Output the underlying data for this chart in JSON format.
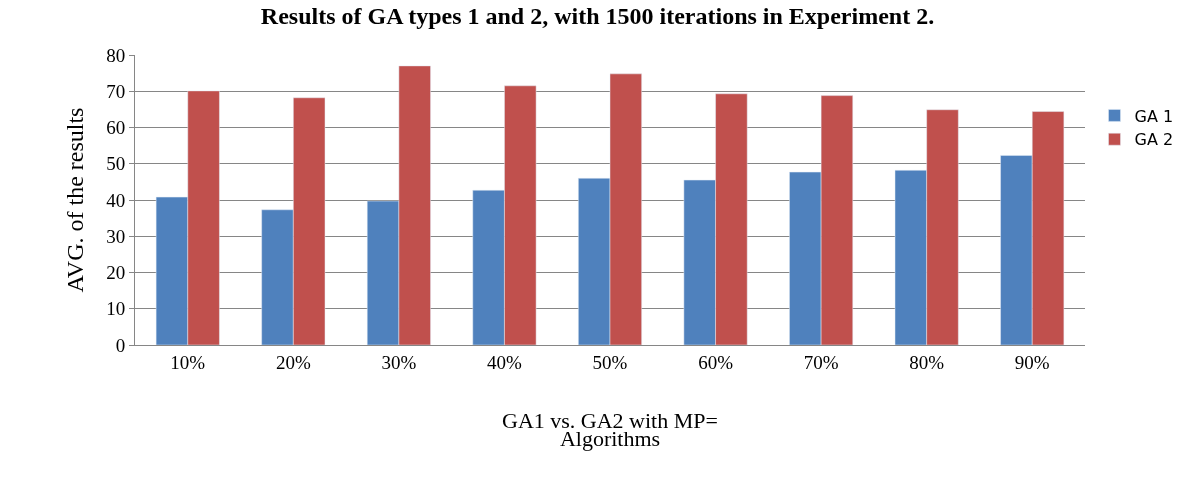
{
  "chart_data": {
    "type": "bar",
    "title": "Results of GA types 1 and 2, with 1500 iterations in Experiment 2.",
    "xlabel": "Algorithms",
    "ylabel": "AVG. of the results",
    "annotations": [
      "GA1 vs. GA2 with MP="
    ],
    "categories": [
      "10%",
      "20%",
      "30%",
      "40%",
      "50%",
      "60%",
      "70%",
      "80%",
      "90%"
    ],
    "series": [
      {
        "name": "GA 1",
        "color": "#4f81bd",
        "values": [
          40.8,
          37.3,
          39.7,
          42.7,
          46,
          45.5,
          47.7,
          48.2,
          52.3
        ]
      },
      {
        "name": "GA 2",
        "color": "#c0504d",
        "values": [
          70.1,
          68.2,
          77,
          71.5,
          74.8,
          69.3,
          68.8,
          64.9,
          64.4
        ]
      }
    ],
    "ylim": [
      0,
      80
    ],
    "yticks": [
      0,
      10,
      20,
      30,
      40,
      50,
      60,
      70,
      80
    ],
    "grid": "y",
    "legend": "right"
  }
}
